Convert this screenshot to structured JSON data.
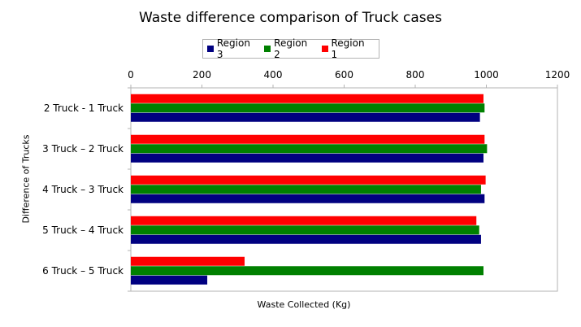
{
  "chart_data": {
    "type": "bar",
    "orientation": "horizontal",
    "title": "Waste difference comparison of Truck cases",
    "xlabel": "Waste Collected (Kg)",
    "ylabel": "Difference of Trucks",
    "xlim": [
      0,
      1200
    ],
    "x_ticks": [
      "0",
      "200",
      "400",
      "600",
      "800",
      "1000",
      "1200"
    ],
    "x_axis_position": "top",
    "grid": false,
    "legend_position": "top",
    "categories": [
      "2 Truck - 1 Truck",
      "3 Truck – 2  Truck",
      "4 Truck – 3 Truck",
      "5 Truck – 4 Truck",
      "6 Truck – 5 Truck"
    ],
    "legend": [
      {
        "name": "Region 3",
        "color": "#000080"
      },
      {
        "name": "Region 2",
        "color": "#008000"
      },
      {
        "name": "Region 1",
        "color": "#ff0000"
      }
    ],
    "series": [
      {
        "name": "Region 1",
        "color": "#ff0000",
        "values": [
          992,
          995,
          998,
          972,
          320
        ]
      },
      {
        "name": "Region 2",
        "color": "#008000",
        "values": [
          995,
          1002,
          985,
          980,
          992
        ]
      },
      {
        "name": "Region 3",
        "color": "#000080",
        "values": [
          982,
          992,
          995,
          985,
          215
        ]
      }
    ]
  }
}
